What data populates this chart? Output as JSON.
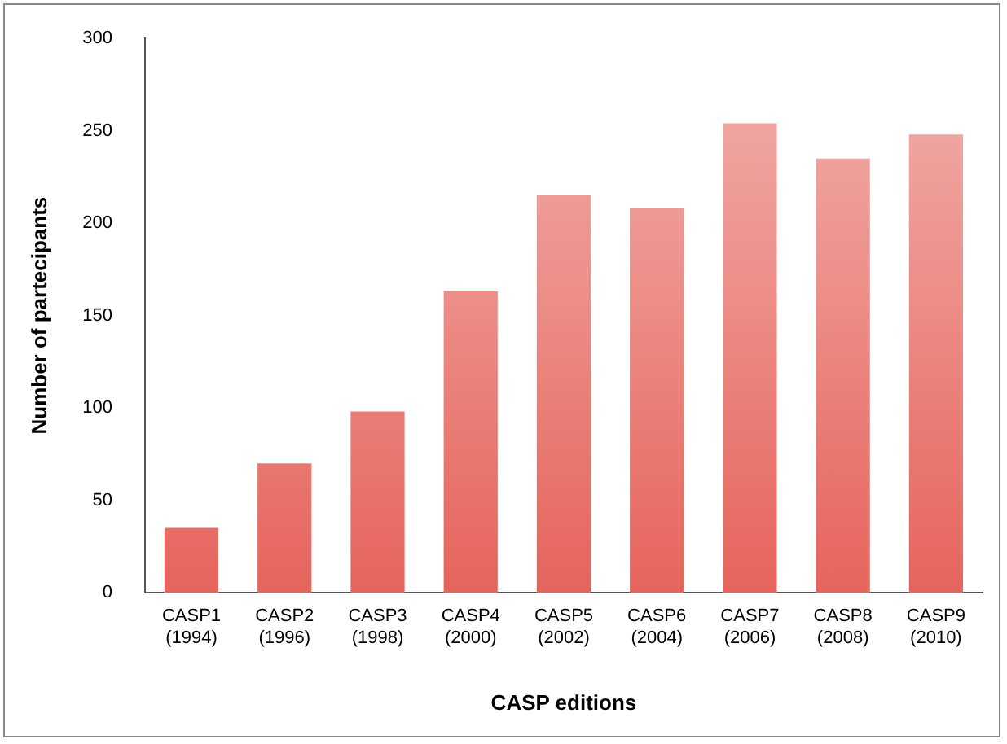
{
  "chart_data": {
    "type": "bar",
    "xlabel": "CASP editions",
    "ylabel": "Number of partecipants",
    "categories": [
      "CASP1 (1994)",
      "CASP2 (1996)",
      "CASP3 (1998)",
      "CASP4 (2000)",
      "CASP5 (2002)",
      "CASP6 (2004)",
      "CASP7 (2006)",
      "CASP8 (2008)",
      "CASP9 (2010)"
    ],
    "values": [
      35,
      70,
      98,
      163,
      215,
      208,
      254,
      235,
      248
    ],
    "color": "#e5645c",
    "ylim": [
      0,
      300
    ],
    "yticks": [
      0,
      50,
      100,
      150,
      200,
      250,
      300
    ],
    "grid": false,
    "legend": false
  }
}
